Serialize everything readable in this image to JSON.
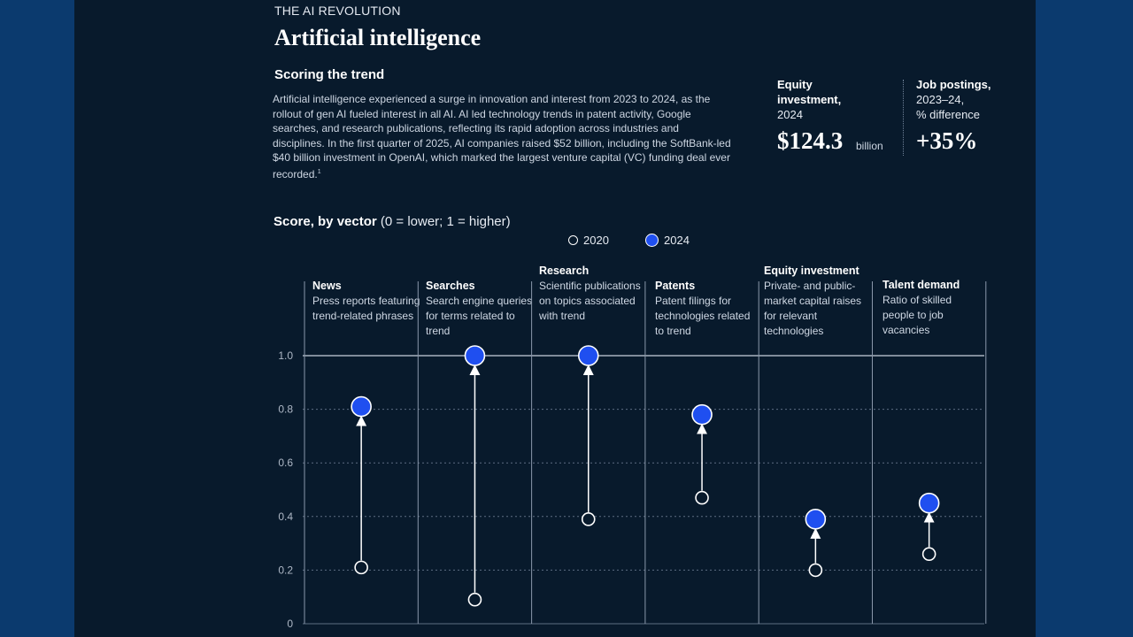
{
  "header": {
    "eyebrow": "THE AI REVOLUTION",
    "title": "Artificial intelligence",
    "subtitle": "Scoring the trend",
    "body": "Artificial intelligence experienced a surge in innovation and interest from 2023 to 2024, as the rollout of gen AI fueled interest in all AI. AI led technology trends in patent activity, Google searches, and research publications, reflecting its rapid adoption across industries and disciplines. In the first quarter of 2025, AI companies raised $52 billion, including the SoftBank-led $40 billion investment in OpenAI, which marked the largest venture capital (VC) funding deal ever recorded.",
    "footnote": "1"
  },
  "stats": {
    "equity": {
      "label_bold": "Equity investment,",
      "label": "2024",
      "value": "$124.3",
      "unit": "billion"
    },
    "jobs": {
      "label_bold": "Job postings,",
      "label_line2": "2023–24,",
      "label_line3": "% difference",
      "value": "+35%"
    }
  },
  "score_title": {
    "bold": "Score, by vector",
    "rest": " (0 = lower; 1 = higher)"
  },
  "legend": {
    "label_2020": "2020",
    "label_2024": "2024"
  },
  "colors": {
    "accent": "#1f4ff0",
    "background": "#081a2c",
    "outer": "#0b3a6e"
  },
  "chart_data": {
    "type": "dumbbell",
    "y_ticks": [
      "0",
      "0.2",
      "0.4",
      "0.6",
      "0.8",
      "1.0"
    ],
    "y_tick_values": [
      0,
      0.2,
      0.4,
      0.6,
      0.8,
      1.0
    ],
    "ylim": [
      0,
      1.0
    ],
    "categories": [
      {
        "name": "News",
        "desc": "Press reports featuring trend-related phrases",
        "v2020": 0.21,
        "v2024": 0.81
      },
      {
        "name": "Searches",
        "desc": "Search engine queries for terms related to trend",
        "v2020": 0.09,
        "v2024": 1.0
      },
      {
        "name": "Research",
        "desc": "Scientific publications on topics associated with trend",
        "v2020": 0.39,
        "v2024": 1.0
      },
      {
        "name": "Patents",
        "desc": "Patent filings for technologies related to trend",
        "v2020": 0.47,
        "v2024": 0.78
      },
      {
        "name": "Equity investment",
        "desc": "Private- and public-market capital raises for relevant technologies",
        "v2020": 0.2,
        "v2024": 0.39
      },
      {
        "name": "Talent demand",
        "desc": "Ratio of skilled people to job vacancies",
        "v2020": 0.26,
        "v2024": 0.45
      }
    ]
  }
}
